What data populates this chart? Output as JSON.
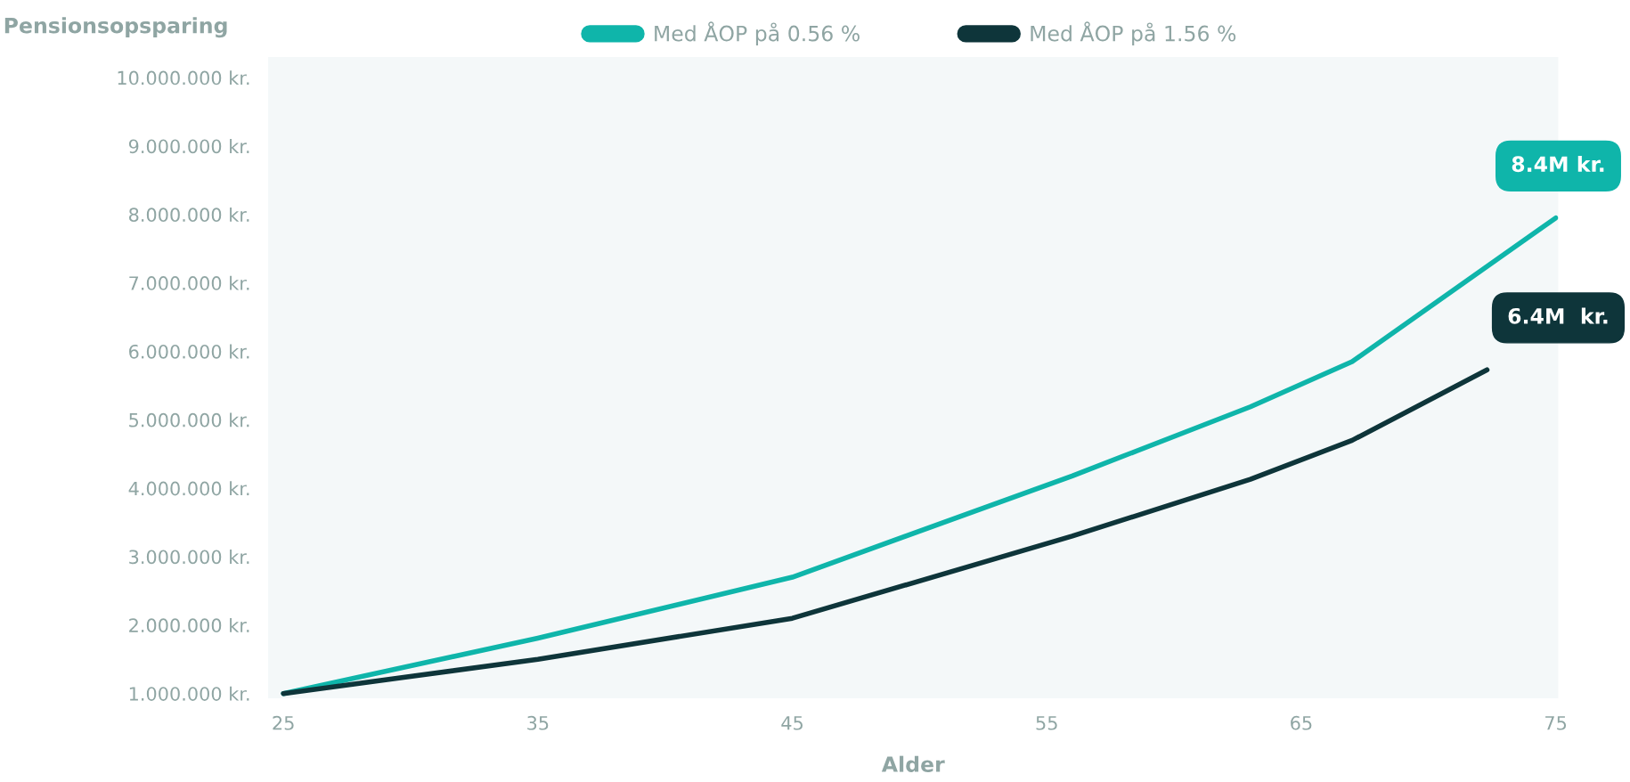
{
  "chart_data": {
    "type": "line",
    "title": "Pensionsopsparing",
    "xlabel": "Alder",
    "xlim": [
      24.4,
      75.1
    ],
    "xticks": [
      25,
      35,
      45,
      55,
      65,
      75
    ],
    "ylim": [
      930000,
      10300000
    ],
    "yticks": [
      {
        "value": 1000000,
        "label": "1.000.000 kr."
      },
      {
        "value": 2000000,
        "label": "2.000.000 kr."
      },
      {
        "value": 3000000,
        "label": "3.000.000 kr."
      },
      {
        "value": 4000000,
        "label": "4.000.000 kr."
      },
      {
        "value": 5000000,
        "label": "5.000.000 kr."
      },
      {
        "value": 6000000,
        "label": "6.000.000 kr."
      },
      {
        "value": 7000000,
        "label": "7.000.000 kr."
      },
      {
        "value": 8000000,
        "label": "8.000.000 kr."
      },
      {
        "value": 9000000,
        "label": "9.000.000 kr."
      },
      {
        "value": 10000000,
        "label": "10.000.000 kr."
      }
    ],
    "grid": false,
    "legend": "top",
    "marker": "none",
    "line_style": "solid",
    "series": [
      {
        "name": "Med ÅOP på 0.56 %",
        "color": "#0fb5aa",
        "x": [
          25,
          35,
          45,
          56,
          63,
          67,
          75
        ],
        "values": [
          1000000,
          1810000,
          2700000,
          4180000,
          5190000,
          5850000,
          7950000
        ]
      },
      {
        "name": "Med ÅOP på 1.56 %",
        "color": "#0e353a",
        "x": [
          25,
          35,
          45,
          56,
          63,
          67,
          72.3
        ],
        "values": [
          1000000,
          1500000,
          2100000,
          3300000,
          4130000,
          4700000,
          5730000
        ]
      }
    ],
    "annotations": [
      "8.4M kr.",
      "6.4M  kr."
    ]
  }
}
